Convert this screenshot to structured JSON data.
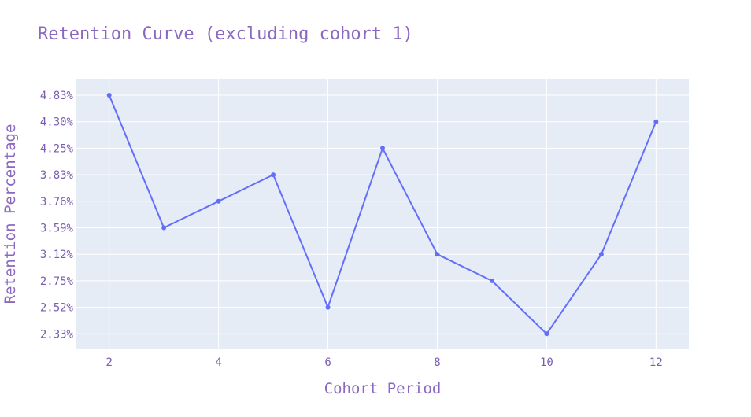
{
  "chart_data": {
    "type": "line",
    "title": "Retention Curve (excluding cohort 1)",
    "xlabel": "Cohort Period",
    "ylabel": "Retention Percentage",
    "x": [
      2,
      3,
      4,
      5,
      6,
      7,
      8,
      9,
      10,
      11,
      12
    ],
    "y_categories": [
      "4.83%",
      "4.30%",
      "4.25%",
      "3.83%",
      "3.76%",
      "3.59%",
      "3.12%",
      "2.75%",
      "2.52%",
      "2.33%"
    ],
    "y": [
      "4.83%",
      "3.59%",
      "3.76%",
      "3.83%",
      "2.52%",
      "4.25%",
      "3.12%",
      "2.75%",
      "2.33%",
      "3.12%",
      "4.30%"
    ],
    "xticks": [
      "2",
      "4",
      "6",
      "8",
      "10",
      "12"
    ],
    "xlim": [
      1.4,
      12.6
    ],
    "yaxis_type": "category",
    "grid": true,
    "colors": {
      "line": "#636efa",
      "plot_bg": "#e5ecf6",
      "grid": "#ffffff",
      "text": "#8a68c0"
    }
  }
}
